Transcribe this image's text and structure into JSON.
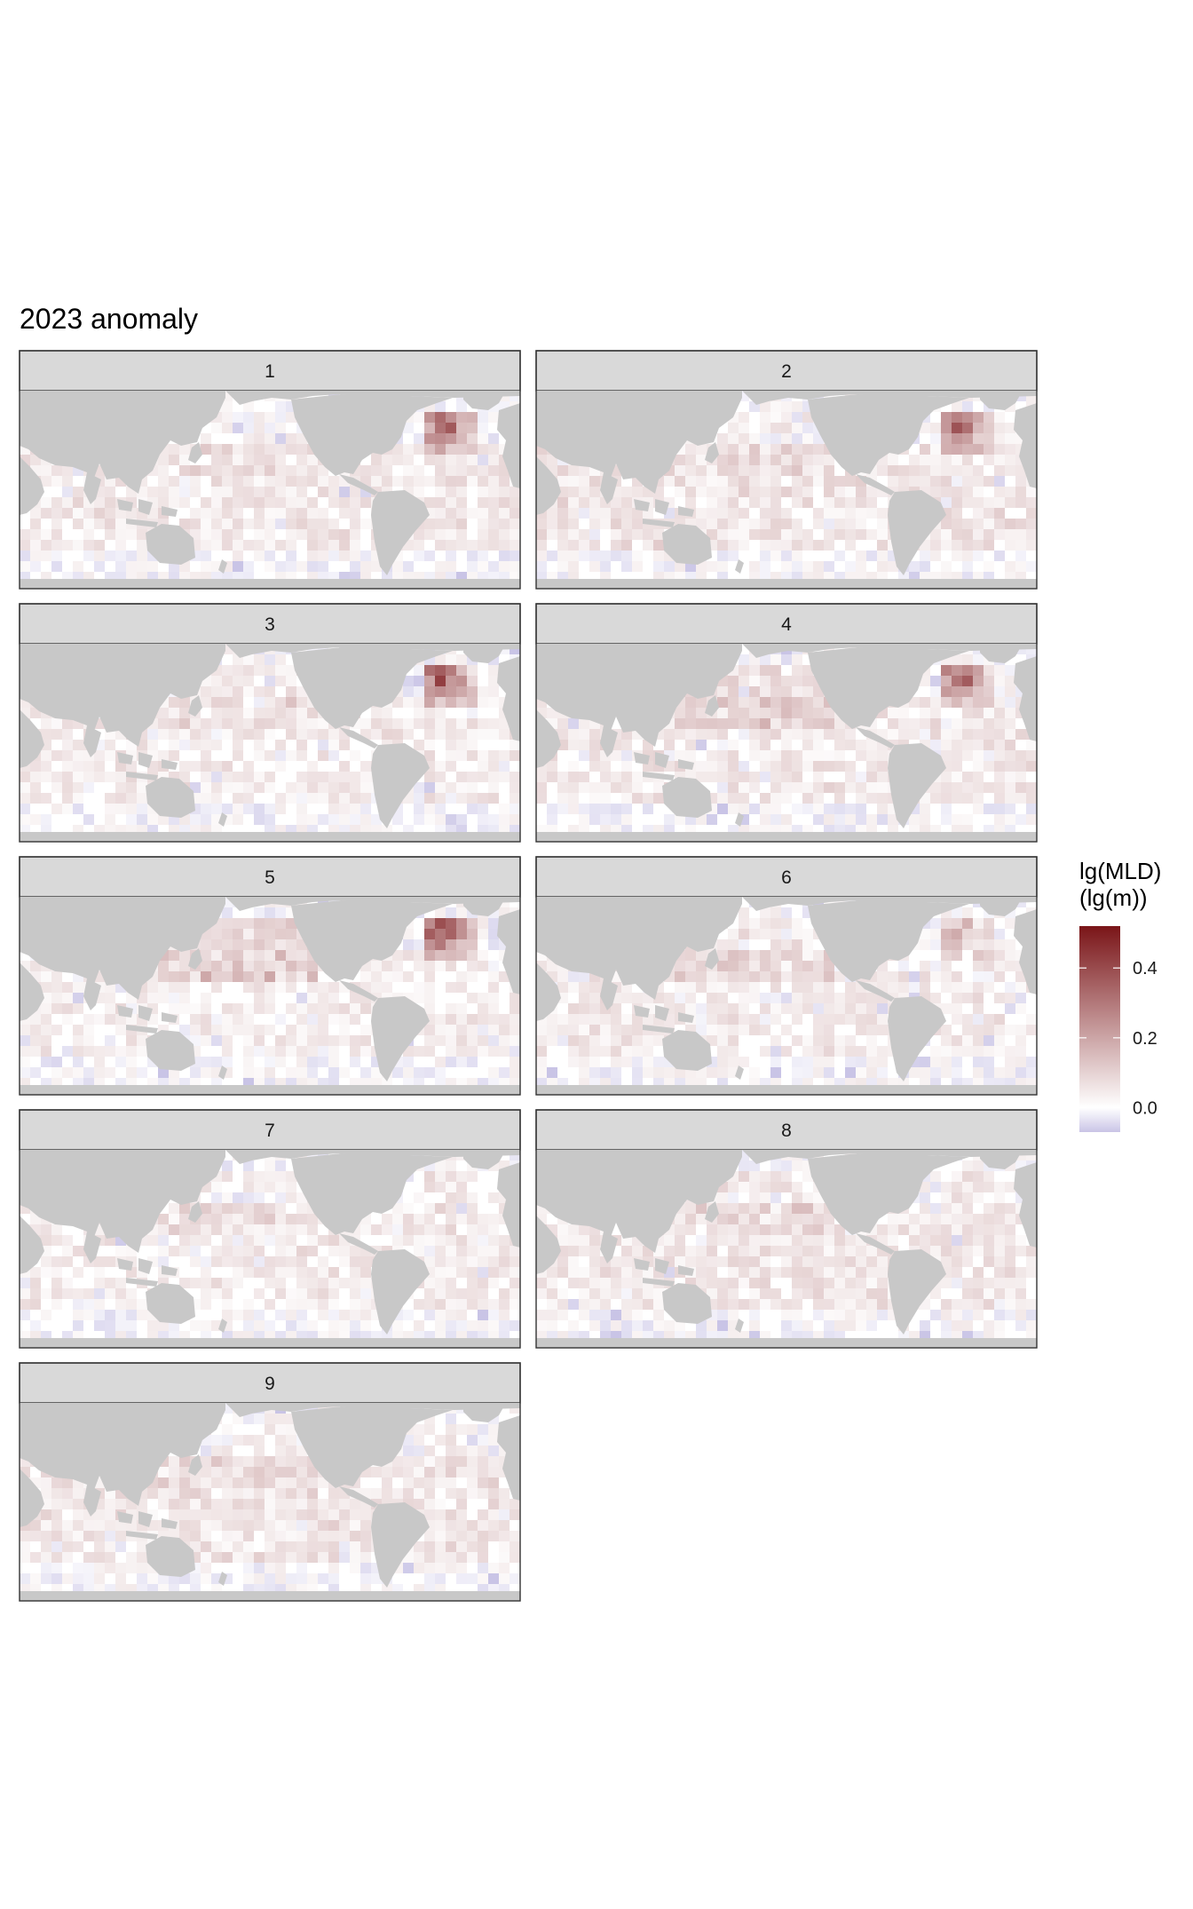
{
  "chart_data": {
    "type": "heatmap",
    "title": "2023 anomaly",
    "panels": [
      {
        "label": "1",
        "hotspot": 0.45,
        "north_pacific": 0.02,
        "tropical": 0.06
      },
      {
        "label": "2",
        "hotspot": 0.42,
        "north_pacific": 0.03,
        "tropical": 0.07
      },
      {
        "label": "3",
        "hotspot": 0.48,
        "north_pacific": 0.05,
        "tropical": 0.05
      },
      {
        "label": "4",
        "hotspot": 0.44,
        "north_pacific": 0.09,
        "tropical": 0.06
      },
      {
        "label": "5",
        "hotspot": 0.5,
        "north_pacific": 0.12,
        "tropical": 0.04
      },
      {
        "label": "6",
        "hotspot": 0.2,
        "north_pacific": 0.06,
        "tropical": 0.05
      },
      {
        "label": "7",
        "hotspot": 0.08,
        "north_pacific": 0.04,
        "tropical": 0.05
      },
      {
        "label": "8",
        "hotspot": 0.07,
        "north_pacific": 0.06,
        "tropical": 0.06
      },
      {
        "label": "9",
        "hotspot": 0.05,
        "north_pacific": 0.03,
        "tropical": 0.07
      }
    ],
    "legend": {
      "title_line1": "lg(MLD)",
      "title_line2": "(lg(m))",
      "ticks": [
        {
          "value": 0.4,
          "label": "0.4"
        },
        {
          "value": 0.2,
          "label": "0.2"
        },
        {
          "value": 0.0,
          "label": "0.0"
        }
      ],
      "range": [
        -0.07,
        0.52
      ],
      "colors": {
        "low": "#c9c4e6",
        "mid": "#ffffff",
        "high": "#7a1518"
      }
    },
    "land_color": "#c8c8c8",
    "ocean_color": "#ffffff"
  }
}
